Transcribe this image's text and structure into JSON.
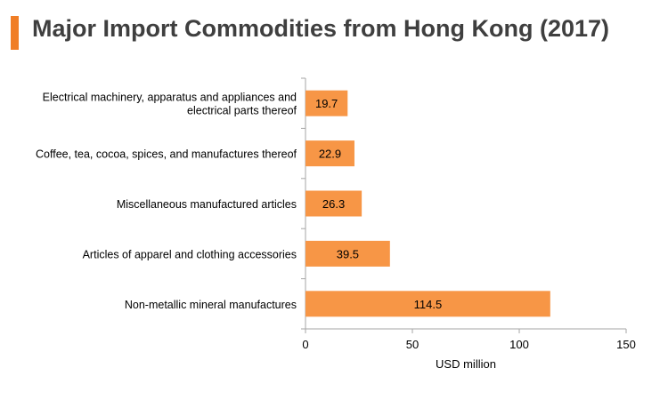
{
  "chart_data": {
    "type": "bar",
    "orientation": "horizontal",
    "title": "Major Import Commodities from Hong Kong (2017)",
    "categories": [
      [
        "Electrical machinery, apparatus and appliances and",
        "electrical parts thereof"
      ],
      [
        "Coffee, tea, cocoa, spices, and manufactures thereof"
      ],
      [
        "Miscellaneous manufactured articles"
      ],
      [
        "Articles of apparel and clothing accessories"
      ],
      [
        "Non-metallic mineral manufactures"
      ]
    ],
    "values": [
      19.7,
      22.9,
      26.3,
      39.5,
      114.5
    ],
    "data_labels": [
      "19.7",
      "22.9",
      "26.3",
      "39.5",
      "114.5"
    ],
    "xlabel": "USD million",
    "ylabel": "",
    "xlim": [
      0,
      150
    ],
    "xticks": [
      0,
      50,
      100,
      150
    ],
    "xtick_labels": [
      "0",
      "50",
      "100",
      "150"
    ],
    "grid": false,
    "legend": "none",
    "colors": {
      "bar": "#F79646",
      "accent": "#F07E26",
      "title": "#3F3F3F",
      "axis": "#A6A6A6",
      "text": "#000000"
    }
  }
}
